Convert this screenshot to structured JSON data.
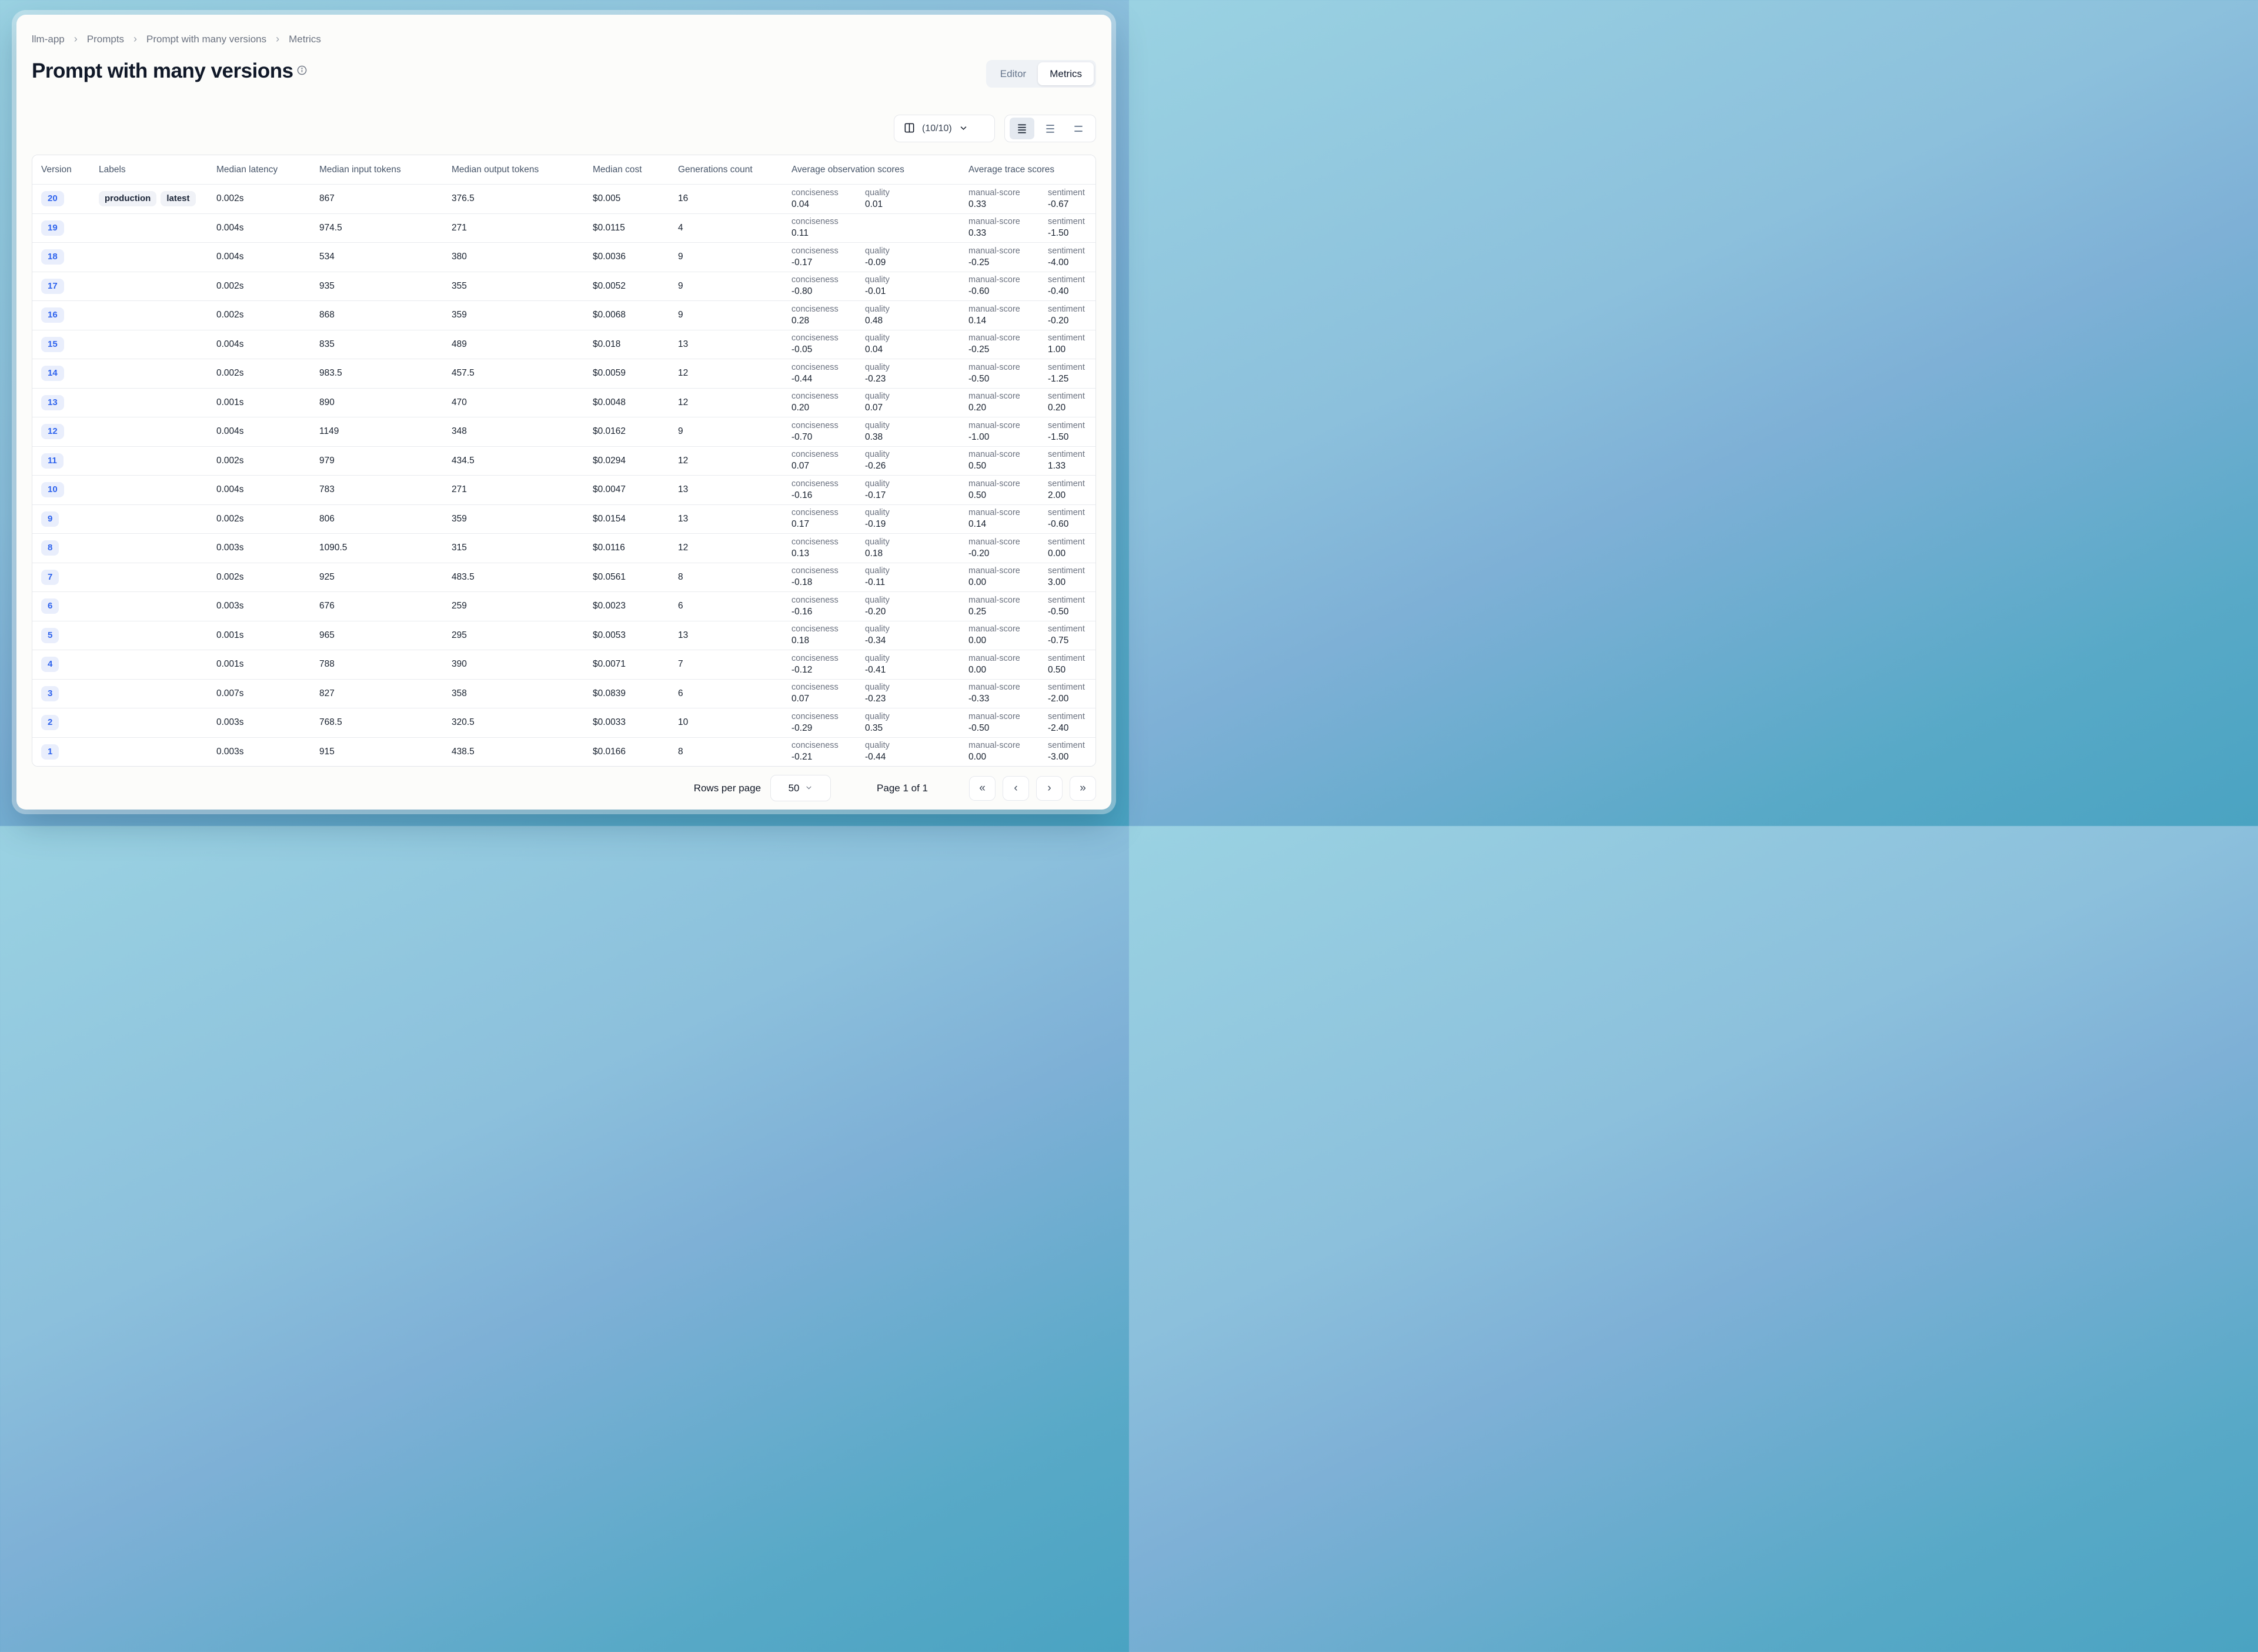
{
  "breadcrumb": {
    "items": [
      "llm-app",
      "Prompts",
      "Prompt with many versions",
      "Metrics"
    ],
    "separator": "›"
  },
  "page": {
    "title": "Prompt with many versions"
  },
  "view_toggle": {
    "editor_label": "Editor",
    "metrics_label": "Metrics",
    "active": "Metrics"
  },
  "toolbar": {
    "columns_count_label": "(10/10)"
  },
  "colors": {
    "accent_blue": "#2d62ed",
    "background_teal": "#4aa3c2",
    "card": "#fcfcfa"
  },
  "table": {
    "columns": [
      "Version",
      "Labels",
      "Median latency",
      "Median input tokens",
      "Median output tokens",
      "Median cost",
      "Generations count",
      "Average observation scores",
      "Average trace scores"
    ],
    "rows": [
      {
        "version": "20",
        "labels": [
          "production",
          "latest"
        ],
        "latency": "0.002s",
        "input": "867",
        "output": "376.5",
        "cost": "$0.005",
        "generations": "16",
        "observation_scores": [
          {
            "name": "conciseness",
            "value": "0.04"
          },
          {
            "name": "quality",
            "value": "0.01"
          }
        ],
        "trace_scores": [
          {
            "name": "manual-score",
            "value": "0.33"
          },
          {
            "name": "sentiment",
            "value": "-0.67"
          }
        ]
      },
      {
        "version": "19",
        "labels": [],
        "latency": "0.004s",
        "input": "974.5",
        "output": "271",
        "cost": "$0.0115",
        "generations": "4",
        "observation_scores": [
          {
            "name": "conciseness",
            "value": "0.11"
          }
        ],
        "trace_scores": [
          {
            "name": "manual-score",
            "value": "0.33"
          },
          {
            "name": "sentiment",
            "value": "-1.50"
          }
        ]
      },
      {
        "version": "18",
        "labels": [],
        "latency": "0.004s",
        "input": "534",
        "output": "380",
        "cost": "$0.0036",
        "generations": "9",
        "observation_scores": [
          {
            "name": "conciseness",
            "value": "-0.17"
          },
          {
            "name": "quality",
            "value": "-0.09"
          }
        ],
        "trace_scores": [
          {
            "name": "manual-score",
            "value": "-0.25"
          },
          {
            "name": "sentiment",
            "value": "-4.00"
          }
        ]
      },
      {
        "version": "17",
        "labels": [],
        "latency": "0.002s",
        "input": "935",
        "output": "355",
        "cost": "$0.0052",
        "generations": "9",
        "observation_scores": [
          {
            "name": "conciseness",
            "value": "-0.80"
          },
          {
            "name": "quality",
            "value": "-0.01"
          }
        ],
        "trace_scores": [
          {
            "name": "manual-score",
            "value": "-0.60"
          },
          {
            "name": "sentiment",
            "value": "-0.40"
          }
        ]
      },
      {
        "version": "16",
        "labels": [],
        "latency": "0.002s",
        "input": "868",
        "output": "359",
        "cost": "$0.0068",
        "generations": "9",
        "observation_scores": [
          {
            "name": "conciseness",
            "value": "0.28"
          },
          {
            "name": "quality",
            "value": "0.48"
          }
        ],
        "trace_scores": [
          {
            "name": "manual-score",
            "value": "0.14"
          },
          {
            "name": "sentiment",
            "value": "-0.20"
          }
        ]
      },
      {
        "version": "15",
        "labels": [],
        "latency": "0.004s",
        "input": "835",
        "output": "489",
        "cost": "$0.018",
        "generations": "13",
        "observation_scores": [
          {
            "name": "conciseness",
            "value": "-0.05"
          },
          {
            "name": "quality",
            "value": "0.04"
          }
        ],
        "trace_scores": [
          {
            "name": "manual-score",
            "value": "-0.25"
          },
          {
            "name": "sentiment",
            "value": "1.00"
          }
        ]
      },
      {
        "version": "14",
        "labels": [],
        "latency": "0.002s",
        "input": "983.5",
        "output": "457.5",
        "cost": "$0.0059",
        "generations": "12",
        "observation_scores": [
          {
            "name": "conciseness",
            "value": "-0.44"
          },
          {
            "name": "quality",
            "value": "-0.23"
          }
        ],
        "trace_scores": [
          {
            "name": "manual-score",
            "value": "-0.50"
          },
          {
            "name": "sentiment",
            "value": "-1.25"
          }
        ]
      },
      {
        "version": "13",
        "labels": [],
        "latency": "0.001s",
        "input": "890",
        "output": "470",
        "cost": "$0.0048",
        "generations": "12",
        "observation_scores": [
          {
            "name": "conciseness",
            "value": "0.20"
          },
          {
            "name": "quality",
            "value": "0.07"
          }
        ],
        "trace_scores": [
          {
            "name": "manual-score",
            "value": "0.20"
          },
          {
            "name": "sentiment",
            "value": "0.20"
          }
        ]
      },
      {
        "version": "12",
        "labels": [],
        "latency": "0.004s",
        "input": "1149",
        "output": "348",
        "cost": "$0.0162",
        "generations": "9",
        "observation_scores": [
          {
            "name": "conciseness",
            "value": "-0.70"
          },
          {
            "name": "quality",
            "value": "0.38"
          }
        ],
        "trace_scores": [
          {
            "name": "manual-score",
            "value": "-1.00"
          },
          {
            "name": "sentiment",
            "value": "-1.50"
          }
        ]
      },
      {
        "version": "11",
        "labels": [],
        "latency": "0.002s",
        "input": "979",
        "output": "434.5",
        "cost": "$0.0294",
        "generations": "12",
        "observation_scores": [
          {
            "name": "conciseness",
            "value": "0.07"
          },
          {
            "name": "quality",
            "value": "-0.26"
          }
        ],
        "trace_scores": [
          {
            "name": "manual-score",
            "value": "0.50"
          },
          {
            "name": "sentiment",
            "value": "1.33"
          }
        ]
      },
      {
        "version": "10",
        "labels": [],
        "latency": "0.004s",
        "input": "783",
        "output": "271",
        "cost": "$0.0047",
        "generations": "13",
        "observation_scores": [
          {
            "name": "conciseness",
            "value": "-0.16"
          },
          {
            "name": "quality",
            "value": "-0.17"
          }
        ],
        "trace_scores": [
          {
            "name": "manual-score",
            "value": "0.50"
          },
          {
            "name": "sentiment",
            "value": "2.00"
          }
        ]
      },
      {
        "version": "9",
        "labels": [],
        "latency": "0.002s",
        "input": "806",
        "output": "359",
        "cost": "$0.0154",
        "generations": "13",
        "observation_scores": [
          {
            "name": "conciseness",
            "value": "0.17"
          },
          {
            "name": "quality",
            "value": "-0.19"
          }
        ],
        "trace_scores": [
          {
            "name": "manual-score",
            "value": "0.14"
          },
          {
            "name": "sentiment",
            "value": "-0.60"
          }
        ]
      },
      {
        "version": "8",
        "labels": [],
        "latency": "0.003s",
        "input": "1090.5",
        "output": "315",
        "cost": "$0.0116",
        "generations": "12",
        "observation_scores": [
          {
            "name": "conciseness",
            "value": "0.13"
          },
          {
            "name": "quality",
            "value": "0.18"
          }
        ],
        "trace_scores": [
          {
            "name": "manual-score",
            "value": "-0.20"
          },
          {
            "name": "sentiment",
            "value": "0.00"
          }
        ]
      },
      {
        "version": "7",
        "labels": [],
        "latency": "0.002s",
        "input": "925",
        "output": "483.5",
        "cost": "$0.0561",
        "generations": "8",
        "observation_scores": [
          {
            "name": "conciseness",
            "value": "-0.18"
          },
          {
            "name": "quality",
            "value": "-0.11"
          }
        ],
        "trace_scores": [
          {
            "name": "manual-score",
            "value": "0.00"
          },
          {
            "name": "sentiment",
            "value": "3.00"
          }
        ]
      },
      {
        "version": "6",
        "labels": [],
        "latency": "0.003s",
        "input": "676",
        "output": "259",
        "cost": "$0.0023",
        "generations": "6",
        "observation_scores": [
          {
            "name": "conciseness",
            "value": "-0.16"
          },
          {
            "name": "quality",
            "value": "-0.20"
          }
        ],
        "trace_scores": [
          {
            "name": "manual-score",
            "value": "0.25"
          },
          {
            "name": "sentiment",
            "value": "-0.50"
          }
        ]
      },
      {
        "version": "5",
        "labels": [],
        "latency": "0.001s",
        "input": "965",
        "output": "295",
        "cost": "$0.0053",
        "generations": "13",
        "observation_scores": [
          {
            "name": "conciseness",
            "value": "0.18"
          },
          {
            "name": "quality",
            "value": "-0.34"
          }
        ],
        "trace_scores": [
          {
            "name": "manual-score",
            "value": "0.00"
          },
          {
            "name": "sentiment",
            "value": "-0.75"
          }
        ]
      },
      {
        "version": "4",
        "labels": [],
        "latency": "0.001s",
        "input": "788",
        "output": "390",
        "cost": "$0.0071",
        "generations": "7",
        "observation_scores": [
          {
            "name": "conciseness",
            "value": "-0.12"
          },
          {
            "name": "quality",
            "value": "-0.41"
          }
        ],
        "trace_scores": [
          {
            "name": "manual-score",
            "value": "0.00"
          },
          {
            "name": "sentiment",
            "value": "0.50"
          }
        ]
      },
      {
        "version": "3",
        "labels": [],
        "latency": "0.007s",
        "input": "827",
        "output": "358",
        "cost": "$0.0839",
        "generations": "6",
        "observation_scores": [
          {
            "name": "conciseness",
            "value": "0.07"
          },
          {
            "name": "quality",
            "value": "-0.23"
          }
        ],
        "trace_scores": [
          {
            "name": "manual-score",
            "value": "-0.33"
          },
          {
            "name": "sentiment",
            "value": "-2.00"
          }
        ]
      },
      {
        "version": "2",
        "labels": [],
        "latency": "0.003s",
        "input": "768.5",
        "output": "320.5",
        "cost": "$0.0033",
        "generations": "10",
        "observation_scores": [
          {
            "name": "conciseness",
            "value": "-0.29"
          },
          {
            "name": "quality",
            "value": "0.35"
          }
        ],
        "trace_scores": [
          {
            "name": "manual-score",
            "value": "-0.50"
          },
          {
            "name": "sentiment",
            "value": "-2.40"
          }
        ]
      },
      {
        "version": "1",
        "labels": [],
        "latency": "0.003s",
        "input": "915",
        "output": "438.5",
        "cost": "$0.0166",
        "generations": "8",
        "observation_scores": [
          {
            "name": "conciseness",
            "value": "-0.21"
          },
          {
            "name": "quality",
            "value": "-0.44"
          }
        ],
        "trace_scores": [
          {
            "name": "manual-score",
            "value": "0.00"
          },
          {
            "name": "sentiment",
            "value": "-3.00"
          }
        ]
      }
    ]
  },
  "footer": {
    "rows_per_page_label": "Rows per page",
    "rows_per_page_value": "50",
    "page_info": "Page 1 of 1",
    "first_glyph": "«",
    "prev_glyph": "‹",
    "next_glyph": "›",
    "last_glyph": "»"
  }
}
